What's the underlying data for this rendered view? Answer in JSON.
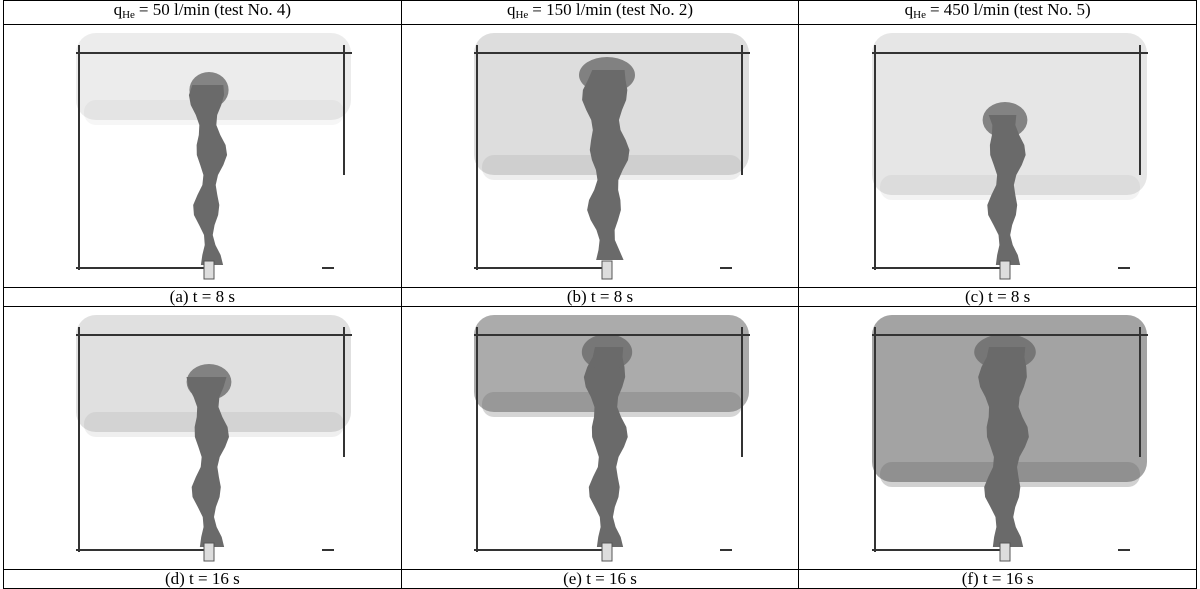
{
  "table": {
    "headers": [
      {
        "symbol": "q",
        "subscript": "He",
        "text": "= 50 l/min (test No. 4)"
      },
      {
        "symbol": "q",
        "subscript": "He",
        "text": "= 150 l/min (test No. 2)"
      },
      {
        "symbol": "q",
        "subscript": "He",
        "text": "= 450 l/min (test No. 5)"
      }
    ],
    "rows": [
      {
        "captions": [
          "(a) t = 8 s",
          "(b) t = 8 s",
          "(c) t = 8 s"
        ]
      },
      {
        "captions": [
          "(d) t = 16 s",
          "(e) t = 16 s",
          "(f) t = 16 s"
        ]
      }
    ]
  }
}
